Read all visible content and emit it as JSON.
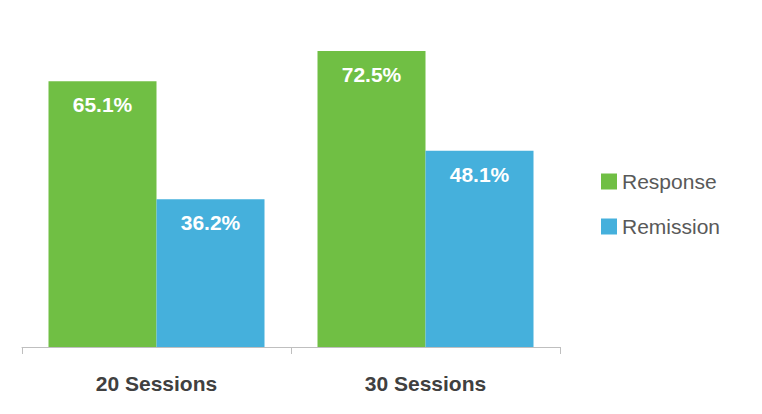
{
  "chart_data": {
    "type": "bar",
    "categories": [
      "20 Sessions",
      "30 Sessions"
    ],
    "series": [
      {
        "name": "Response",
        "color": "#70bf44",
        "values": [
          65.1,
          72.5
        ],
        "value_labels": [
          "65.1%",
          "72.5%"
        ]
      },
      {
        "name": "Remission",
        "color": "#45b0dc",
        "values": [
          36.2,
          48.1
        ],
        "value_labels": [
          "36.2%",
          "48.1%"
        ]
      }
    ],
    "ylim": [
      0,
      85
    ],
    "grid": false,
    "legend": "right",
    "data_labels": true,
    "tick_labels": "x"
  }
}
